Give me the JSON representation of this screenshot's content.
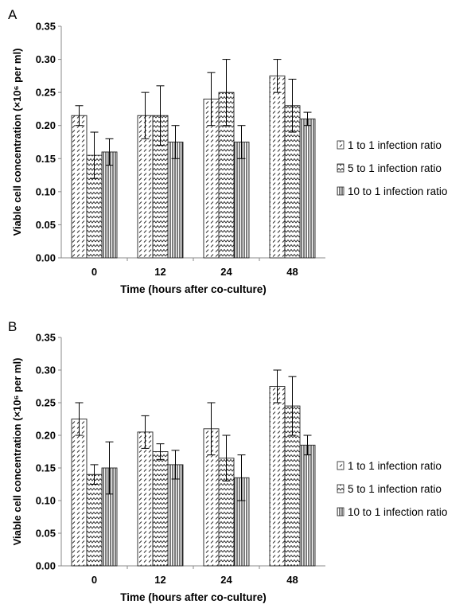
{
  "chart_data": [
    {
      "panel_label": "A",
      "type": "bar",
      "categories": [
        "0",
        "12",
        "24",
        "48"
      ],
      "xlabel": "Time (hours after co-culture)",
      "ylabel": "Viable cell concentration (×10⁶ per ml)",
      "ylim": [
        0,
        0.35
      ],
      "yticks": [
        "0.00",
        "0.05",
        "0.10",
        "0.15",
        "0.20",
        "0.25",
        "0.30",
        "0.35"
      ],
      "grid": false,
      "legend": "right",
      "series": [
        {
          "name": "1 to 1 infection ratio",
          "pattern": "dashes",
          "values": [
            0.215,
            0.215,
            0.24,
            0.275
          ],
          "errors": [
            0.015,
            0.035,
            0.04,
            0.025
          ]
        },
        {
          "name": "5 to 1 infection ratio",
          "pattern": "zigzag",
          "values": [
            0.155,
            0.215,
            0.25,
            0.23
          ],
          "errors": [
            0.035,
            0.045,
            0.05,
            0.04
          ]
        },
        {
          "name": "10 to 1 infection ratio",
          "pattern": "vertical",
          "values": [
            0.16,
            0.175,
            0.175,
            0.21
          ],
          "errors": [
            0.02,
            0.025,
            0.025,
            0.01
          ]
        }
      ]
    },
    {
      "panel_label": "B",
      "type": "bar",
      "categories": [
        "0",
        "12",
        "24",
        "48"
      ],
      "xlabel": "Time (hours after co-culture)",
      "ylabel": "Viable cell concentration (×10⁶ per ml)",
      "ylim": [
        0,
        0.35
      ],
      "yticks": [
        "0.00",
        "0.05",
        "0.10",
        "0.15",
        "0.20",
        "0.25",
        "0.30",
        "0.35"
      ],
      "grid": false,
      "legend": "right",
      "series": [
        {
          "name": "1 to 1 infection ratio",
          "pattern": "dashes",
          "values": [
            0.225,
            0.205,
            0.21,
            0.275
          ],
          "errors": [
            0.025,
            0.025,
            0.04,
            0.025
          ]
        },
        {
          "name": "5 to 1 infection ratio",
          "pattern": "zigzag",
          "values": [
            0.14,
            0.175,
            0.165,
            0.245
          ],
          "errors": [
            0.015,
            0.012,
            0.035,
            0.045
          ]
        },
        {
          "name": "10 to 1 infection ratio",
          "pattern": "vertical",
          "values": [
            0.15,
            0.155,
            0.135,
            0.185
          ],
          "errors": [
            0.04,
            0.022,
            0.035,
            0.015
          ]
        }
      ]
    }
  ]
}
